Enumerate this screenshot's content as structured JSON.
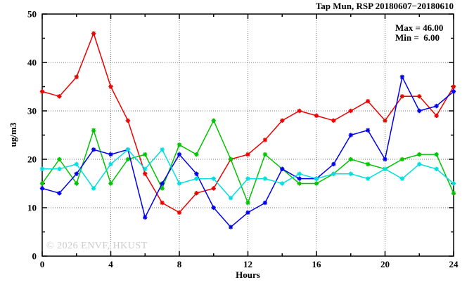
{
  "title": "Tap Mun, RSP 20180607−20180610",
  "legend": {
    "max_label": "Max = 46.00",
    "min_label": "Min =  6.00"
  },
  "watermark": "© 2026 ENVF, HKUST",
  "chart_data": {
    "type": "line",
    "title": "Tap Mun, RSP 20180607−20180610",
    "xlabel": "Hours",
    "ylabel": "ug/m3",
    "xlim": [
      0,
      24
    ],
    "ylim": [
      0,
      50
    ],
    "x_major_ticks": [
      0,
      4,
      8,
      12,
      16,
      20,
      24
    ],
    "x_minor_ticks": [
      2,
      6,
      10,
      14,
      18,
      22
    ],
    "y_major_ticks": [
      0,
      10,
      20,
      30,
      40,
      50
    ],
    "y_minor_ticks": [
      5,
      15,
      25,
      35,
      45
    ],
    "grid": true,
    "grid_style": "dotted",
    "legend_position": "top-right-inside",
    "marker": "asterisk",
    "annotations": {
      "max": 46.0,
      "min": 6.0
    },
    "x": [
      0,
      1,
      2,
      3,
      4,
      5,
      6,
      7,
      8,
      9,
      10,
      11,
      12,
      13,
      14,
      15,
      16,
      17,
      18,
      19,
      20,
      21,
      22,
      23,
      24
    ],
    "series": [
      {
        "name": "red",
        "color": "#ee0000",
        "values": [
          34,
          33,
          37,
          46,
          35,
          28,
          17,
          11,
          9,
          13,
          14,
          20,
          21,
          24,
          28,
          30,
          29,
          28,
          30,
          32,
          28,
          33,
          33,
          29,
          35
        ]
      },
      {
        "name": "green",
        "color": "#00c400",
        "values": [
          15,
          20,
          15,
          26,
          15,
          20,
          21,
          14,
          23,
          21,
          28,
          20,
          11,
          21,
          18,
          15,
          15,
          17,
          20,
          19,
          18,
          20,
          21,
          21,
          13
        ]
      },
      {
        "name": "blue",
        "color": "#0000ee",
        "values": [
          14,
          13,
          17,
          22,
          21,
          22,
          8,
          15,
          21,
          17,
          10,
          6,
          9,
          11,
          18,
          16,
          16,
          19,
          25,
          26,
          20,
          37,
          30,
          31,
          34
        ]
      },
      {
        "name": "cyan",
        "color": "#00dede",
        "values": [
          18,
          18,
          19,
          14,
          19,
          22,
          18,
          22,
          15,
          16,
          16,
          12,
          16,
          16,
          15,
          17,
          16,
          17,
          17,
          16,
          18,
          16,
          19,
          18,
          15
        ]
      }
    ]
  }
}
